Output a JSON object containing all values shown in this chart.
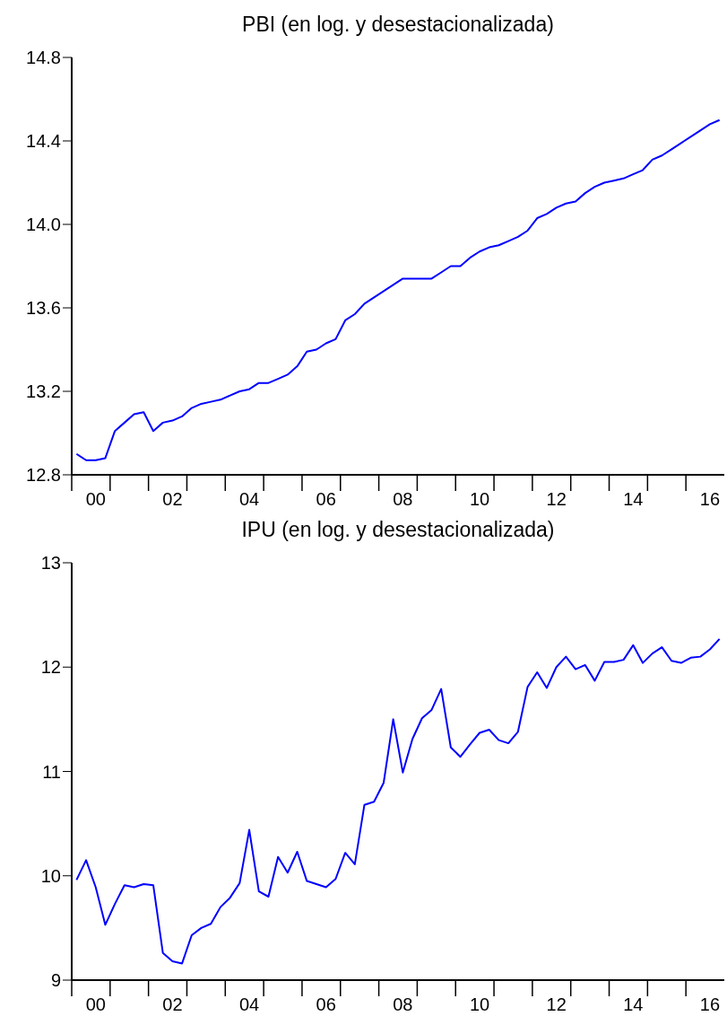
{
  "chart_data": [
    {
      "type": "line",
      "title": "PBI (en log. y desestacionalizada)",
      "categories": [
        null,
        null,
        "00",
        null,
        null,
        null,
        null,
        null,
        null,
        null,
        "02",
        null,
        null,
        null,
        null,
        null,
        null,
        null,
        "04",
        null,
        null,
        null,
        null,
        null,
        null,
        null,
        "06",
        null,
        null,
        null,
        null,
        null,
        null,
        null,
        "08",
        null,
        null,
        null,
        null,
        null,
        null,
        null,
        "10",
        null,
        null,
        null,
        null,
        null,
        null,
        null,
        "12",
        null,
        null,
        null,
        null,
        null,
        null,
        null,
        "14",
        null,
        null,
        null,
        null,
        null,
        null,
        null,
        "16",
        null
      ],
      "series": [
        {
          "color": "#0000ff",
          "values": [
            12.9,
            12.87,
            12.87,
            12.88,
            13.01,
            13.05,
            13.09,
            13.1,
            13.01,
            13.05,
            13.06,
            13.08,
            13.12,
            13.14,
            13.15,
            13.16,
            13.18,
            13.2,
            13.21,
            13.24,
            13.24,
            13.26,
            13.28,
            13.32,
            13.39,
            13.4,
            13.43,
            13.45,
            13.54,
            13.57,
            13.62,
            13.65,
            13.68,
            13.71,
            13.74,
            13.74,
            13.74,
            13.74,
            13.77,
            13.8,
            13.8,
            13.84,
            13.87,
            13.89,
            13.9,
            13.92,
            13.94,
            13.97,
            14.03,
            14.05,
            14.08,
            14.1,
            14.11,
            14.15,
            14.18,
            14.2,
            14.21,
            14.22,
            14.24,
            14.26,
            14.31,
            14.33,
            14.36,
            14.39,
            14.42,
            14.45,
            14.48,
            14.5
          ]
        }
      ],
      "ylim": [
        12.8,
        14.8
      ],
      "yticks": [
        12.8,
        13.2,
        13.6,
        {
          "value": 14,
          "label": "14.0"
        },
        14.4,
        14.8
      ],
      "grid": false,
      "legend": false
    },
    {
      "type": "line",
      "title": "IPU (en log. y desestacionalizada)",
      "categories": [
        null,
        null,
        "00",
        null,
        null,
        null,
        null,
        null,
        null,
        null,
        "02",
        null,
        null,
        null,
        null,
        null,
        null,
        null,
        "04",
        null,
        null,
        null,
        null,
        null,
        null,
        null,
        "06",
        null,
        null,
        null,
        null,
        null,
        null,
        null,
        "08",
        null,
        null,
        null,
        null,
        null,
        null,
        null,
        "10",
        null,
        null,
        null,
        null,
        null,
        null,
        null,
        "12",
        null,
        null,
        null,
        null,
        null,
        null,
        null,
        "14",
        null,
        null,
        null,
        null,
        null,
        null,
        null,
        "16",
        null
      ],
      "series": [
        {
          "color": "#0000ff",
          "values": [
            9.96,
            10.15,
            9.89,
            9.53,
            9.73,
            9.91,
            9.89,
            9.92,
            9.91,
            9.26,
            9.18,
            9.16,
            9.43,
            9.5,
            9.54,
            9.7,
            9.79,
            9.93,
            10.44,
            9.85,
            9.8,
            10.18,
            10.03,
            10.23,
            9.95,
            9.92,
            9.89,
            9.97,
            10.22,
            10.11,
            10.68,
            10.71,
            10.89,
            11.5,
            10.99,
            11.31,
            11.51,
            11.59,
            11.79,
            11.23,
            11.14,
            11.26,
            11.37,
            11.4,
            11.3,
            11.27,
            11.38,
            11.81,
            11.95,
            11.8,
            12.0,
            12.1,
            11.98,
            12.02,
            11.87,
            12.05,
            12.05,
            12.07,
            12.21,
            12.04,
            12.13,
            12.19,
            12.06,
            12.04,
            12.09,
            12.1,
            12.17,
            12.27
          ]
        }
      ],
      "ylim": [
        9,
        13
      ],
      "yticks": [
        9,
        10,
        11,
        12,
        13
      ],
      "grid": false,
      "legend": false
    }
  ]
}
